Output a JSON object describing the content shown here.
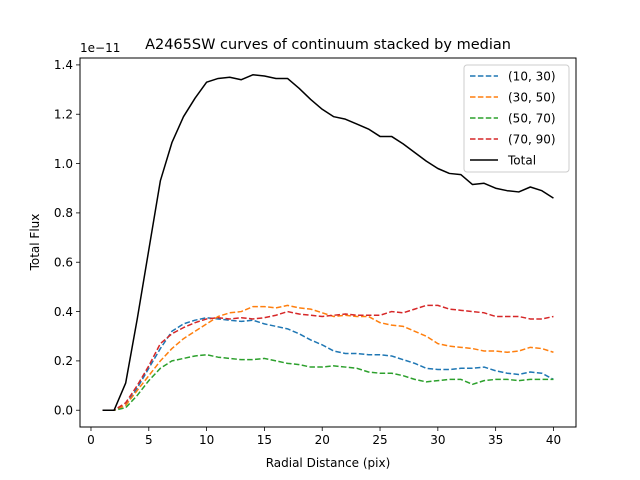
{
  "chart_data": {
    "type": "line",
    "title": "A2465SW curves of continuum stacked by median",
    "xlabel": "Radial Distance (pix)",
    "ylabel": "Total Flux",
    "y_offset_label": "1e−11",
    "xlim": [
      -0.95,
      41.95
    ],
    "ylim": [
      -0.068,
      1.428
    ],
    "xticks": [
      0,
      5,
      10,
      15,
      20,
      25,
      30,
      35,
      40
    ],
    "yticks": [
      0.0,
      0.2,
      0.4,
      0.6,
      0.8,
      1.0,
      1.2,
      1.4
    ],
    "ytick_labels": [
      "0.0",
      "0.2",
      "0.4",
      "0.6",
      "0.8",
      "1.0",
      "1.2",
      "1.4"
    ],
    "legend_position": "top-right",
    "x": [
      1,
      2,
      3,
      4,
      5,
      6,
      7,
      8,
      9,
      10,
      11,
      12,
      13,
      14,
      15,
      16,
      17,
      18,
      19,
      20,
      21,
      22,
      23,
      24,
      25,
      26,
      27,
      28,
      29,
      30,
      31,
      32,
      33,
      34,
      35,
      36,
      37,
      38,
      39,
      40
    ],
    "series": [
      {
        "name": "(10, 30)",
        "color": "#1f77b4",
        "dash": true,
        "values": [
          0.0,
          0.0,
          0.02,
          0.09,
          0.17,
          0.25,
          0.32,
          0.35,
          0.365,
          0.375,
          0.37,
          0.365,
          0.36,
          0.365,
          0.35,
          0.34,
          0.33,
          0.31,
          0.285,
          0.265,
          0.24,
          0.23,
          0.23,
          0.225,
          0.225,
          0.22,
          0.205,
          0.19,
          0.17,
          0.165,
          0.165,
          0.17,
          0.17,
          0.175,
          0.16,
          0.15,
          0.145,
          0.155,
          0.15,
          0.125
        ]
      },
      {
        "name": "(30, 50)",
        "color": "#ff7f0e",
        "dash": true,
        "values": [
          0.0,
          0.0,
          0.02,
          0.08,
          0.14,
          0.2,
          0.25,
          0.29,
          0.32,
          0.35,
          0.38,
          0.395,
          0.4,
          0.42,
          0.42,
          0.415,
          0.425,
          0.415,
          0.41,
          0.395,
          0.38,
          0.385,
          0.38,
          0.38,
          0.355,
          0.345,
          0.34,
          0.32,
          0.3,
          0.27,
          0.26,
          0.255,
          0.25,
          0.24,
          0.24,
          0.235,
          0.24,
          0.255,
          0.25,
          0.235
        ]
      },
      {
        "name": "(50, 70)",
        "color": "#2ca02c",
        "dash": true,
        "values": [
          0.0,
          0.0,
          0.01,
          0.06,
          0.12,
          0.17,
          0.2,
          0.21,
          0.22,
          0.225,
          0.215,
          0.21,
          0.205,
          0.205,
          0.21,
          0.2,
          0.19,
          0.185,
          0.175,
          0.175,
          0.18,
          0.175,
          0.17,
          0.155,
          0.15,
          0.15,
          0.14,
          0.125,
          0.115,
          0.12,
          0.125,
          0.125,
          0.105,
          0.12,
          0.125,
          0.125,
          0.12,
          0.125,
          0.125,
          0.125
        ]
      },
      {
        "name": "(70, 90)",
        "color": "#d62728",
        "dash": true,
        "values": [
          0.0,
          0.0,
          0.03,
          0.1,
          0.18,
          0.27,
          0.31,
          0.335,
          0.355,
          0.37,
          0.375,
          0.37,
          0.375,
          0.37,
          0.375,
          0.385,
          0.4,
          0.39,
          0.385,
          0.38,
          0.385,
          0.39,
          0.385,
          0.385,
          0.385,
          0.4,
          0.395,
          0.41,
          0.425,
          0.425,
          0.41,
          0.405,
          0.4,
          0.395,
          0.38,
          0.38,
          0.38,
          0.37,
          0.37,
          0.38
        ]
      },
      {
        "name": "Total",
        "color": "#000000",
        "dash": false,
        "values": [
          0.0,
          0.0,
          0.11,
          0.37,
          0.65,
          0.93,
          1.085,
          1.19,
          1.265,
          1.33,
          1.345,
          1.35,
          1.34,
          1.36,
          1.355,
          1.345,
          1.345,
          1.305,
          1.26,
          1.22,
          1.19,
          1.18,
          1.16,
          1.14,
          1.11,
          1.11,
          1.08,
          1.045,
          1.01,
          0.98,
          0.96,
          0.955,
          0.915,
          0.92,
          0.9,
          0.89,
          0.885,
          0.905,
          0.89,
          0.86
        ]
      }
    ]
  }
}
